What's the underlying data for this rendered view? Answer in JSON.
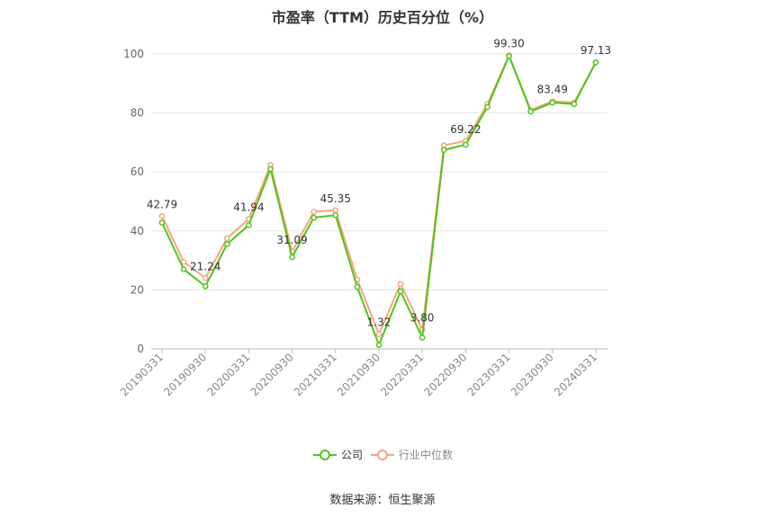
{
  "chart_data": {
    "type": "line",
    "title": "市盈率（TTM）历史百分位（%）",
    "source": "数据来源：恒生聚源",
    "ylim": [
      0,
      100
    ],
    "yticks": [
      0,
      20,
      40,
      60,
      80,
      100
    ],
    "grid": true,
    "legend_position": "bottom",
    "x": [
      "20190331",
      "20190630",
      "20190930",
      "20191231",
      "20200331",
      "20200630",
      "20200930",
      "20201231",
      "20210331",
      "20210630",
      "20210930",
      "20211231",
      "20220331",
      "20220630",
      "20220930",
      "20221231",
      "20230331",
      "20230630",
      "20230930",
      "20231231",
      "20240331"
    ],
    "x_tick_labels": [
      "20190331",
      "20190930",
      "20200331",
      "20200930",
      "20210331",
      "20210930",
      "20220331",
      "20220930",
      "20230331",
      "20230930",
      "20240331"
    ],
    "series": [
      {
        "name": "公司",
        "color": "#52c41a",
        "values": [
          42.79,
          27.0,
          21.24,
          35.5,
          41.94,
          61.0,
          31.09,
          44.5,
          45.35,
          21.0,
          1.32,
          19.5,
          3.8,
          67.5,
          69.22,
          82.0,
          99.3,
          80.5,
          83.49,
          83.0,
          97.13
        ],
        "data_labels": [
          "42.79",
          "",
          "21.24",
          "",
          "41.94",
          "",
          "31.09",
          "",
          "45.35",
          "",
          "1.32",
          "",
          "3.80",
          "",
          "69.22",
          "",
          "99.30",
          "",
          "83.49",
          "",
          "97.13"
        ]
      },
      {
        "name": "行业中位数",
        "color": "#f4a582",
        "values": [
          45.0,
          29.5,
          24.0,
          37.5,
          44.0,
          62.3,
          33.0,
          46.5,
          47.0,
          23.5,
          5.0,
          22.0,
          6.5,
          69.0,
          70.5,
          83.0,
          99.5,
          81.0,
          84.0,
          83.5,
          97.2
        ]
      }
    ]
  }
}
